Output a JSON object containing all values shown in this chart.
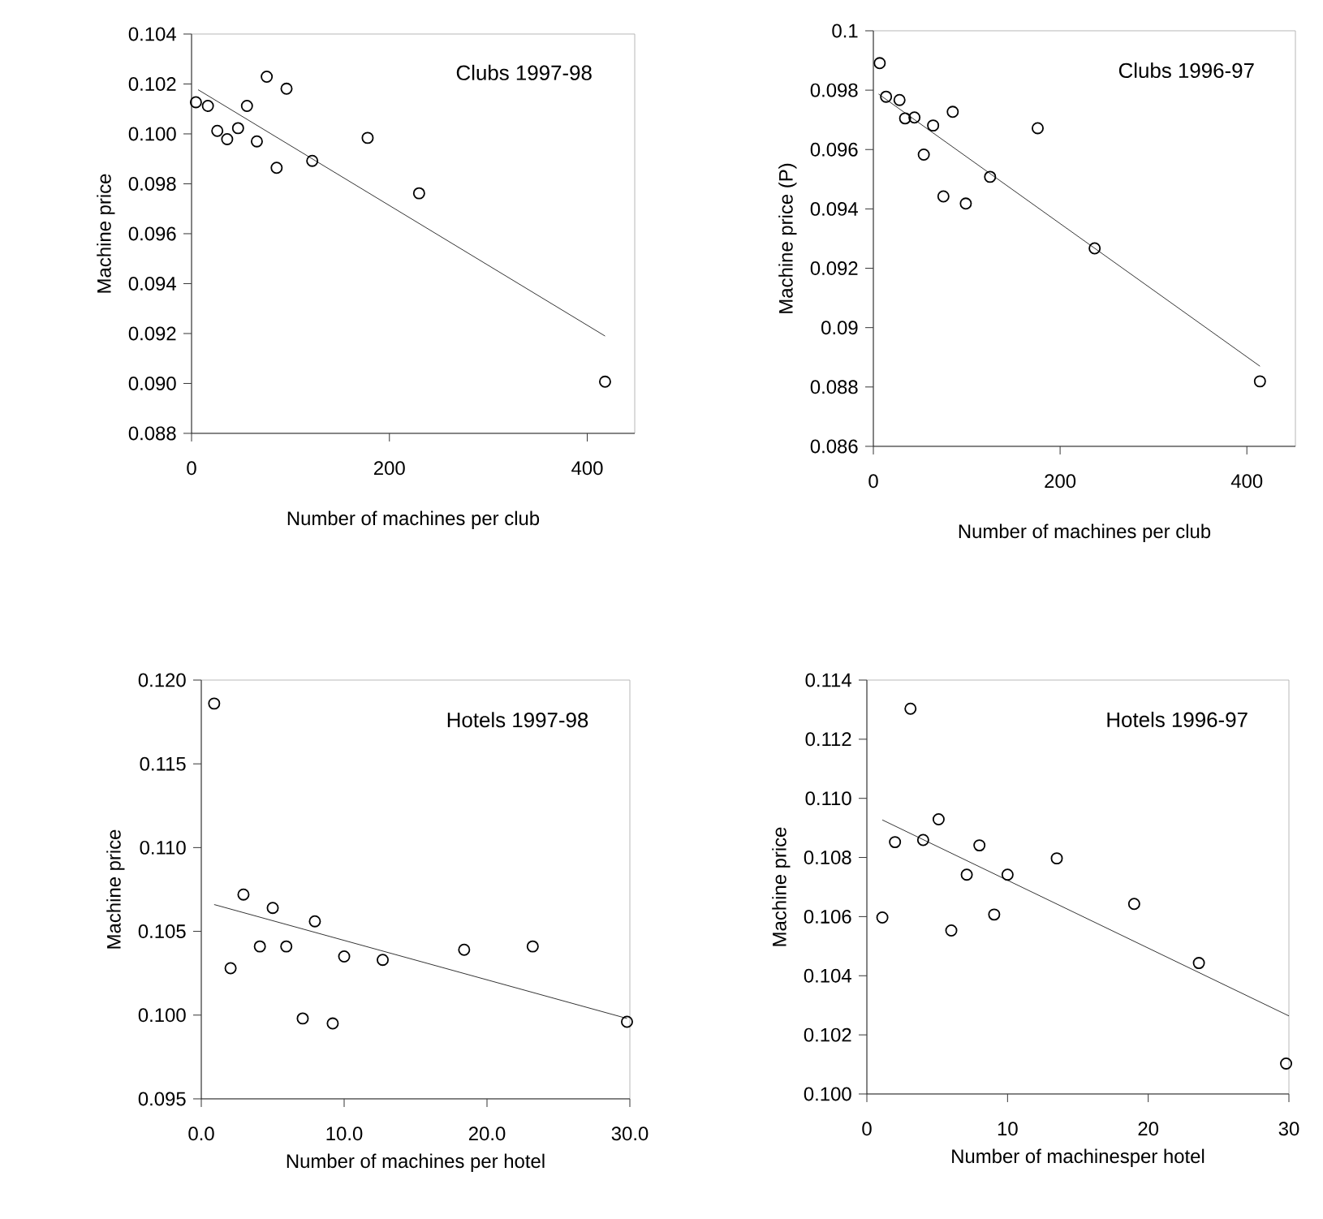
{
  "chart_data": [
    {
      "type": "scatter",
      "title": "Clubs 1997-98",
      "xlabel": "Number of machines per club",
      "ylabel": "Machine price",
      "xlim": [
        0,
        448
      ],
      "ylim": [
        0.088,
        0.104
      ],
      "xticks": [
        0,
        200,
        400
      ],
      "yticks": [
        {
          "value": 0.088,
          "label": "0.088"
        },
        {
          "value": 0.09,
          "label": "0.090"
        },
        0.092,
        0.094,
        0.096,
        0.098,
        {
          "value": 0.1,
          "label": "0.100"
        },
        0.102,
        0.104
      ],
      "series": [
        {
          "marker": "circle",
          "color": "#000000",
          "x": [
            4.4,
            16.5,
            26,
            36,
            47,
            56,
            66,
            76,
            86,
            96,
            122,
            178,
            230,
            418
          ],
          "values": [
            0.10127,
            0.10112,
            0.10012,
            0.09979,
            0.10023,
            0.10112,
            0.0997,
            0.10229,
            0.09864,
            0.10181,
            0.09892,
            0.09984,
            0.09762,
            0.09007
          ]
        },
        {
          "type": "line",
          "marker": "none",
          "color": "#000000",
          "x": [
            6.6,
            418
          ],
          "values": [
            0.10177,
            0.0919
          ]
        }
      ]
    },
    {
      "type": "scatter",
      "title": "Clubs 1996-97",
      "xlabel": "Number of machines per club",
      "ylabel": "Machine price (P)",
      "xlim": [
        0,
        452
      ],
      "ylim": [
        0.086,
        0.1
      ],
      "xticks": [
        0,
        200,
        400
      ],
      "yticks": [
        0.086,
        0.088,
        0.09,
        0.092,
        0.094,
        0.096,
        0.098,
        0.1
      ],
      "series": [
        {
          "marker": "circle",
          "color": "#000000",
          "x": [
            6.8,
            13.6,
            28,
            34,
            44,
            64,
            54,
            85,
            75,
            99,
            125,
            176,
            237,
            414
          ],
          "values": [
            0.09891,
            0.09778,
            0.09767,
            0.09705,
            0.09708,
            0.09681,
            0.09583,
            0.09727,
            0.09442,
            0.09418,
            0.09508,
            0.09672,
            0.09267,
            0.08819
          ]
        },
        {
          "type": "line",
          "marker": "none",
          "color": "#000000",
          "x": [
            5.6,
            414
          ],
          "values": [
            0.09787,
            0.0887
          ]
        }
      ]
    },
    {
      "type": "scatter",
      "title": "Hotels 1997-98",
      "xlabel": "Number of machines per hotel",
      "ylabel": "Machine price",
      "xlim": [
        0,
        30
      ],
      "ylim": [
        0.095,
        0.12
      ],
      "xticks": [
        {
          "value": 0,
          "label": "0.0"
        },
        {
          "value": 10,
          "label": "10.0"
        },
        {
          "value": 20,
          "label": "20.0"
        },
        {
          "value": 30,
          "label": "30.0"
        }
      ],
      "yticks": [
        0.095,
        {
          "value": 0.1,
          "label": "0.100"
        },
        0.105,
        {
          "value": 0.11,
          "label": "0.110"
        },
        0.115,
        {
          "value": 0.12,
          "label": "0.120"
        }
      ],
      "series": [
        {
          "marker": "circle",
          "color": "#000000",
          "x": [
            0.9,
            2.05,
            2.95,
            4.1,
            5.0,
            5.95,
            7.1,
            7.95,
            9.2,
            10.0,
            12.7,
            18.4,
            23.2,
            29.8
          ],
          "values": [
            0.1186,
            0.1028,
            0.1072,
            0.1041,
            0.1064,
            0.1041,
            0.0998,
            0.1056,
            0.0995,
            0.1035,
            0.1033,
            0.1039,
            0.1041,
            0.0996
          ]
        },
        {
          "type": "line",
          "marker": "none",
          "color": "#000000",
          "x": [
            0.9,
            29.8
          ],
          "values": [
            0.1066,
            0.0998
          ]
        }
      ]
    },
    {
      "type": "scatter",
      "title": "Hotels 1996-97",
      "xlabel": "Number of machinesper hotel",
      "ylabel": "Machine price",
      "xlim": [
        0,
        30
      ],
      "ylim": [
        0.1,
        0.114
      ],
      "xticks": [
        0,
        10,
        20,
        30
      ],
      "yticks": [
        {
          "value": 0.1,
          "label": "0.100"
        },
        0.102,
        0.104,
        0.106,
        0.108,
        {
          "value": 0.11,
          "label": "0.110"
        },
        0.112,
        0.114
      ],
      "series": [
        {
          "marker": "circle",
          "color": "#000000",
          "x": [
            1.1,
            2.0,
            3.1,
            4.0,
            5.1,
            6.0,
            7.1,
            8.0,
            9.05,
            10.0,
            13.5,
            19.0,
            23.6,
            29.8
          ],
          "values": [
            0.10597,
            0.10852,
            0.11303,
            0.10859,
            0.10929,
            0.10553,
            0.10742,
            0.10841,
            0.10607,
            0.10742,
            0.10797,
            0.10643,
            0.10443,
            0.10103
          ]
        },
        {
          "type": "line",
          "marker": "none",
          "color": "#000000",
          "x": [
            1.1,
            30
          ],
          "values": [
            0.10927,
            0.10264
          ]
        }
      ]
    }
  ]
}
